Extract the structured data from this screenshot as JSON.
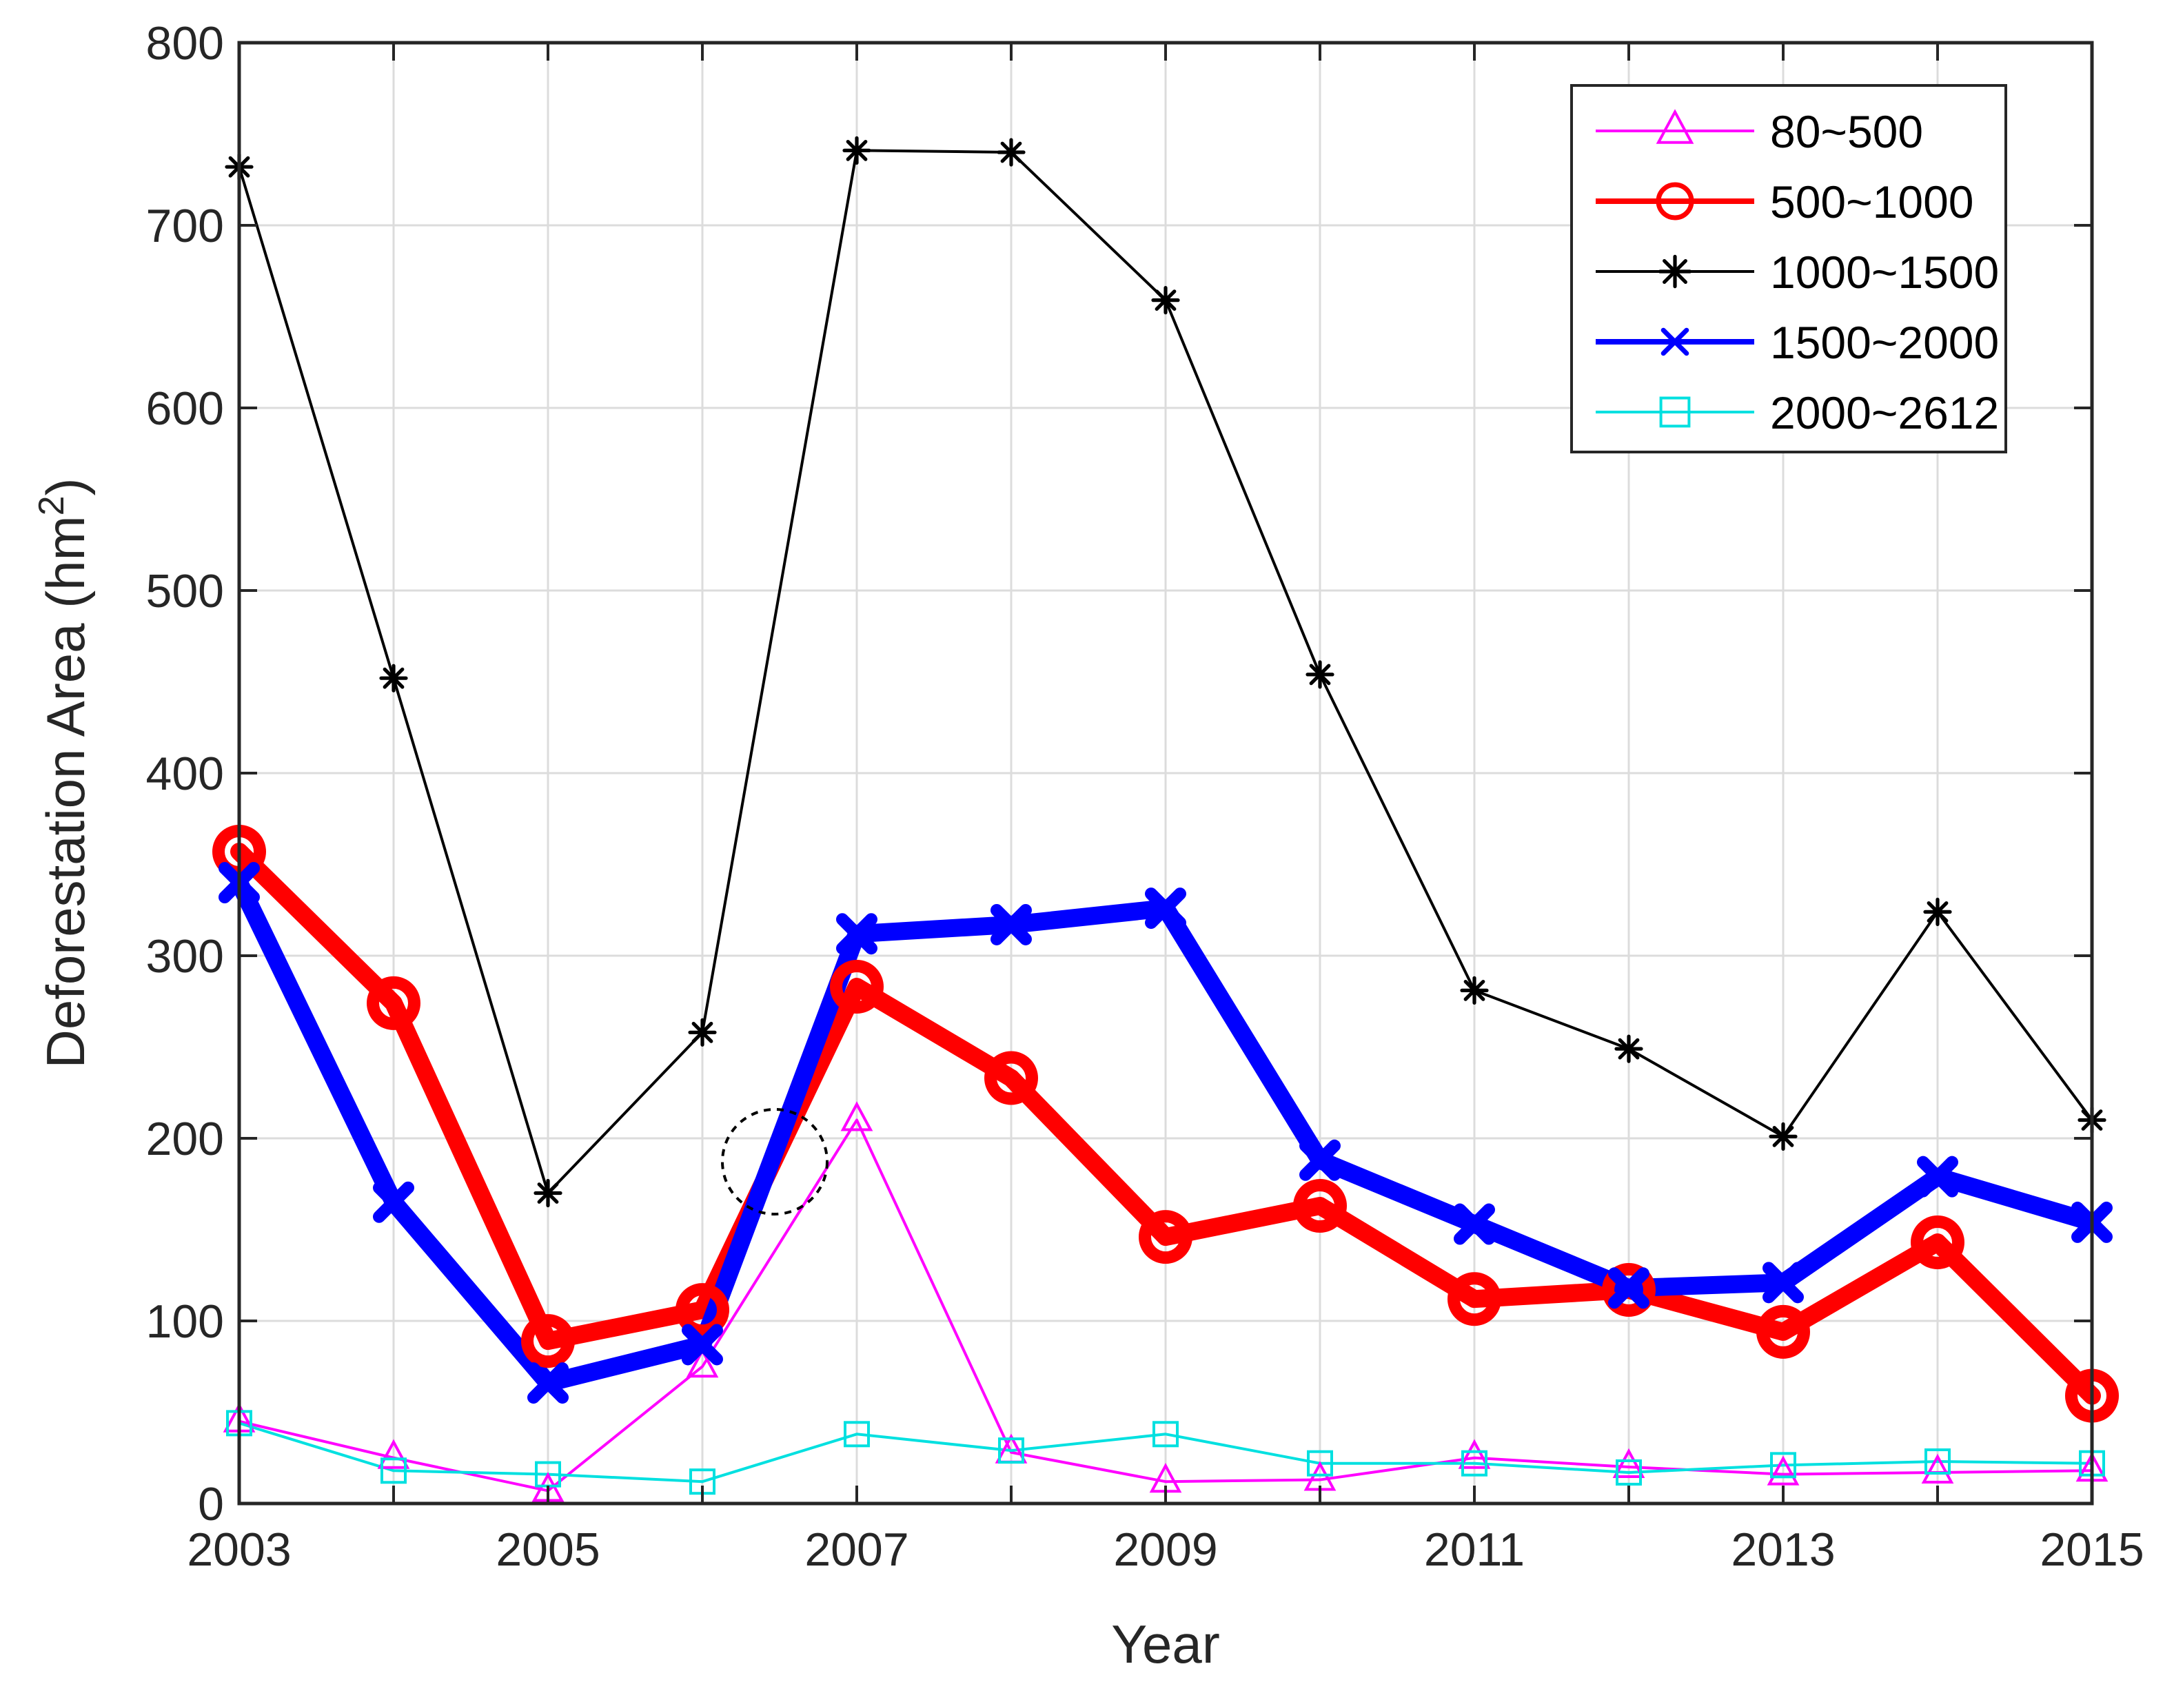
{
  "chart_data": {
    "type": "line",
    "title": "",
    "xlabel": "Year",
    "ylabel": "Deforestation Area (hm",
    "ylabel_superscript": "2",
    "ylabel_close": ")",
    "xlim": [
      2003,
      2015
    ],
    "ylim": [
      0,
      800
    ],
    "x_ticks": [
      "2003",
      "2005",
      "2007",
      "2009",
      "2011",
      "2013",
      "2015"
    ],
    "y_ticks": [
      "0",
      "100",
      "200",
      "300",
      "400",
      "500",
      "600",
      "700",
      "800"
    ],
    "grid": true,
    "legend_position": "top-right",
    "x": [
      2003,
      2004,
      2005,
      2006,
      2007,
      2008,
      2009,
      2010,
      2011,
      2012,
      2013,
      2014,
      2015
    ],
    "series": [
      {
        "name": "80~500",
        "color": "#ff00ff",
        "marker": "triangle",
        "line_weight": "thin",
        "values": [
          45,
          25,
          7,
          75,
          210,
          28,
          12,
          13,
          25,
          20,
          16,
          17,
          18
        ]
      },
      {
        "name": "500~1000",
        "color": "#ff0000",
        "marker": "circle",
        "line_weight": "heavy",
        "values": [
          357,
          274,
          89,
          106,
          283,
          233,
          146,
          163,
          112,
          117,
          94,
          143,
          59
        ]
      },
      {
        "name": "1000~1500",
        "color": "#000000",
        "marker": "asterisk",
        "line_weight": "thin",
        "values": [
          732,
          452,
          170,
          258,
          741,
          740,
          659,
          454,
          281,
          249,
          201,
          324,
          210
        ]
      },
      {
        "name": "1500~2000",
        "color": "#0000ff",
        "marker": "x",
        "line_weight": "heavy",
        "values": [
          340,
          165,
          66,
          87,
          312,
          317,
          326,
          188,
          153,
          118,
          121,
          179,
          154
        ]
      },
      {
        "name": "2000~2612",
        "color": "#00e0e0",
        "marker": "square",
        "line_weight": "thin",
        "values": [
          44,
          18,
          16,
          12,
          38,
          29,
          38,
          22,
          22,
          17,
          21,
          23,
          22
        ]
      }
    ]
  }
}
